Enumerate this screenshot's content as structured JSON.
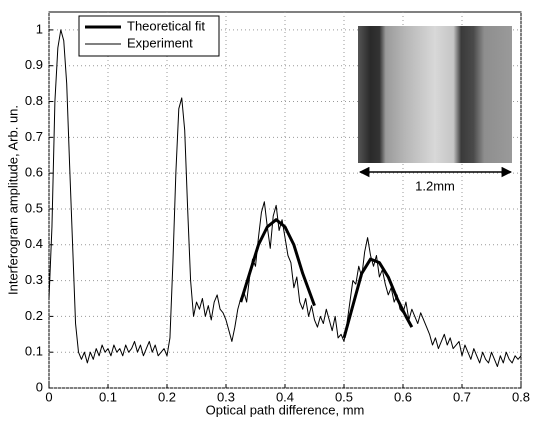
{
  "chart_data": {
    "type": "line",
    "xlabel": "Optical path difference, mm",
    "ylabel": "Interferogram amplitude, Arb. un.",
    "xlim": [
      0,
      0.8
    ],
    "xticks": [
      0,
      0.1,
      0.2,
      0.3,
      0.4,
      0.5,
      0.6,
      0.7,
      0.8
    ],
    "ylim": [
      0,
      1.05
    ],
    "yticks": [
      0,
      0.1,
      0.2,
      0.3,
      0.4,
      0.5,
      0.6,
      0.7,
      0.8,
      0.9,
      1
    ],
    "grid": true,
    "legend": "upper left",
    "annotation": "1.2mm",
    "series": [
      {
        "name": "Theoretical fit",
        "color": "#000000",
        "line_width": 3,
        "x": [
          0.325,
          0.34,
          0.355,
          0.37,
          0.385,
          0.4,
          0.415,
          0.43,
          0.45,
          0.475,
          0.5,
          0.515,
          0.53,
          0.545,
          0.56,
          0.575,
          0.59,
          0.605,
          0.615
        ],
        "values": [
          0.24,
          0.32,
          0.4,
          0.45,
          0.47,
          0.45,
          0.4,
          0.32,
          0.23,
          null,
          0.14,
          0.23,
          0.32,
          0.36,
          0.35,
          0.31,
          0.25,
          0.2,
          0.17
        ]
      },
      {
        "name": "Experiment",
        "color": "#000000",
        "line_width": 1,
        "x": [
          0,
          0.005,
          0.01,
          0.015,
          0.02,
          0.025,
          0.03,
          0.035,
          0.04,
          0.045,
          0.05,
          0.055,
          0.06,
          0.065,
          0.07,
          0.075,
          0.08,
          0.085,
          0.09,
          0.095,
          0.1,
          0.105,
          0.11,
          0.115,
          0.12,
          0.125,
          0.13,
          0.135,
          0.14,
          0.145,
          0.15,
          0.155,
          0.16,
          0.165,
          0.17,
          0.175,
          0.18,
          0.185,
          0.19,
          0.195,
          0.2,
          0.205,
          0.21,
          0.215,
          0.22,
          0.225,
          0.23,
          0.235,
          0.24,
          0.245,
          0.25,
          0.255,
          0.26,
          0.265,
          0.27,
          0.275,
          0.28,
          0.285,
          0.29,
          0.295,
          0.3,
          0.305,
          0.31,
          0.315,
          0.32,
          0.325,
          0.33,
          0.335,
          0.34,
          0.345,
          0.35,
          0.355,
          0.36,
          0.365,
          0.37,
          0.375,
          0.38,
          0.385,
          0.39,
          0.395,
          0.4,
          0.405,
          0.41,
          0.415,
          0.42,
          0.425,
          0.43,
          0.435,
          0.44,
          0.445,
          0.45,
          0.455,
          0.46,
          0.465,
          0.47,
          0.475,
          0.48,
          0.485,
          0.49,
          0.495,
          0.5,
          0.505,
          0.51,
          0.515,
          0.52,
          0.525,
          0.53,
          0.535,
          0.54,
          0.545,
          0.55,
          0.555,
          0.56,
          0.565,
          0.57,
          0.575,
          0.58,
          0.585,
          0.59,
          0.595,
          0.6,
          0.605,
          0.61,
          0.615,
          0.62,
          0.625,
          0.63,
          0.635,
          0.64,
          0.645,
          0.65,
          0.655,
          0.66,
          0.665,
          0.67,
          0.675,
          0.68,
          0.685,
          0.69,
          0.695,
          0.7,
          0.705,
          0.71,
          0.715,
          0.72,
          0.725,
          0.73,
          0.735,
          0.74,
          0.745,
          0.75,
          0.755,
          0.76,
          0.765,
          0.77,
          0.775,
          0.78,
          0.785,
          0.79,
          0.795,
          0.8
        ],
        "values": [
          0.25,
          0.45,
          0.8,
          0.95,
          1.0,
          0.97,
          0.85,
          0.62,
          0.4,
          0.18,
          0.1,
          0.08,
          0.1,
          0.07,
          0.1,
          0.08,
          0.11,
          0.09,
          0.12,
          0.1,
          0.11,
          0.09,
          0.12,
          0.1,
          0.11,
          0.09,
          0.12,
          0.1,
          0.11,
          0.13,
          0.1,
          0.12,
          0.09,
          0.11,
          0.13,
          0.1,
          0.12,
          0.09,
          0.1,
          0.11,
          0.09,
          0.14,
          0.35,
          0.6,
          0.78,
          0.81,
          0.72,
          0.5,
          0.3,
          0.2,
          0.24,
          0.22,
          0.25,
          0.2,
          0.23,
          0.19,
          0.24,
          0.26,
          0.22,
          0.21,
          0.19,
          0.16,
          0.13,
          0.17,
          0.22,
          0.25,
          0.27,
          0.24,
          0.31,
          0.36,
          0.34,
          0.42,
          0.49,
          0.52,
          0.45,
          0.39,
          0.48,
          0.51,
          0.44,
          0.47,
          0.42,
          0.37,
          0.35,
          0.28,
          0.31,
          0.24,
          0.22,
          0.25,
          0.2,
          0.23,
          0.19,
          0.17,
          0.2,
          0.18,
          0.22,
          0.19,
          0.16,
          0.2,
          0.14,
          0.15,
          0.13,
          0.18,
          0.24,
          0.3,
          0.29,
          0.34,
          0.31,
          0.38,
          0.42,
          0.37,
          0.34,
          0.37,
          0.31,
          0.33,
          0.29,
          0.26,
          0.28,
          0.24,
          0.26,
          0.22,
          0.21,
          0.24,
          0.19,
          0.22,
          0.2,
          0.18,
          0.21,
          0.19,
          0.17,
          0.15,
          0.12,
          0.14,
          0.11,
          0.13,
          0.15,
          0.12,
          0.14,
          0.11,
          0.12,
          0.13,
          0.09,
          0.12,
          0.1,
          0.08,
          0.11,
          0.09,
          0.07,
          0.1,
          0.08,
          0.07,
          0.1,
          0.08,
          0.06,
          0.09,
          0.07,
          0.1,
          0.08,
          0.07,
          0.09,
          0.08,
          0.09
        ]
      }
    ]
  }
}
